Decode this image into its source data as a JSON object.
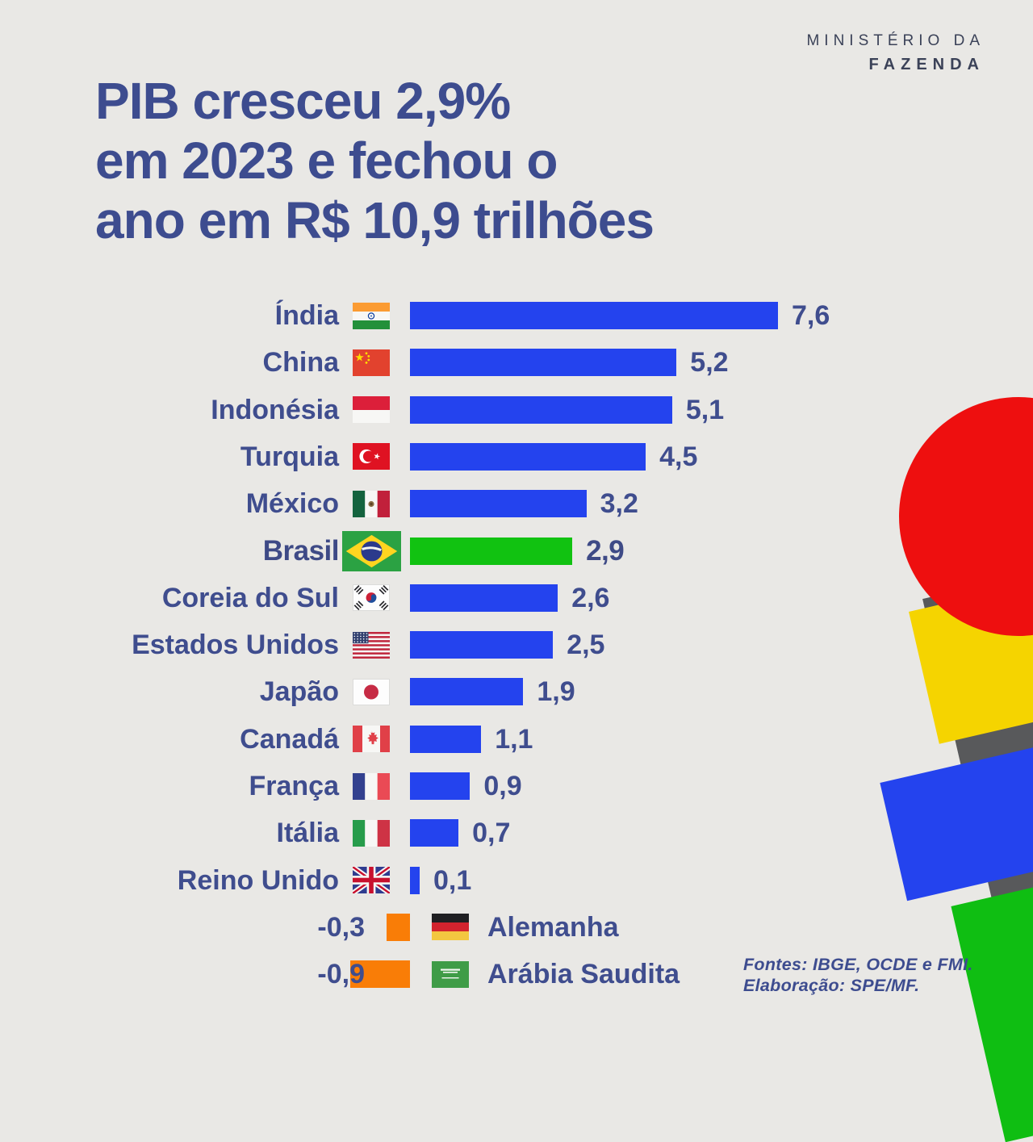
{
  "brand": {
    "line1": "MINISTÉRIO DA",
    "line2": "FAZENDA"
  },
  "title": {
    "lines": [
      "PIB cresceu 2,9%",
      "em 2023 e fechou o",
      "ano em R$ 10,9 trilhões"
    ]
  },
  "footer": {
    "line1": "Fontes: IBGE, OCDE e FMI.",
    "line2": "Elaboração: SPE/MF."
  },
  "chart_data": {
    "type": "bar",
    "orientation": "horizontal",
    "title": "PIB cresceu 2,9% em 2023 e fechou o ano em R$ 10,9 trilhões",
    "categories": [
      "Índia",
      "China",
      "Indonésia",
      "Turquia",
      "México",
      "Brasil",
      "Coreia do Sul",
      "Estados Unidos",
      "Japão",
      "Canadá",
      "França",
      "Itália",
      "Reino Unido",
      "Alemanha",
      "Arábia Saudita"
    ],
    "values": [
      7.6,
      5.2,
      5.1,
      4.5,
      3.2,
      2.9,
      2.6,
      2.5,
      1.9,
      1.1,
      0.9,
      0.7,
      0.1,
      -0.3,
      -0.9
    ],
    "value_labels": [
      "7,6",
      "5,2",
      "5,1",
      "4,5",
      "3,2",
      "2,9",
      "2,6",
      "2,5",
      "1,9",
      "1,1",
      "0,9",
      "0,7",
      "0,1",
      "-0,3",
      "-0,9"
    ],
    "flags": [
      "flag-india",
      "flag-china",
      "flag-indonesia",
      "flag-turkey",
      "flag-mexico",
      "flag-brazil",
      "flag-south-korea",
      "flag-usa",
      "flag-japan",
      "flag-canada",
      "flag-france",
      "flag-italy",
      "flag-uk",
      "flag-germany",
      "flag-saudi-arabia"
    ],
    "highlight_category": "Brasil",
    "highlight_index": 5,
    "xlim": [
      -1,
      8
    ],
    "grid": false,
    "colors": {
      "positive_bar": "#2443EE",
      "highlight_bar": "#11C211",
      "negative_bar": "#F97D07",
      "text": "#3F4D8E"
    }
  }
}
